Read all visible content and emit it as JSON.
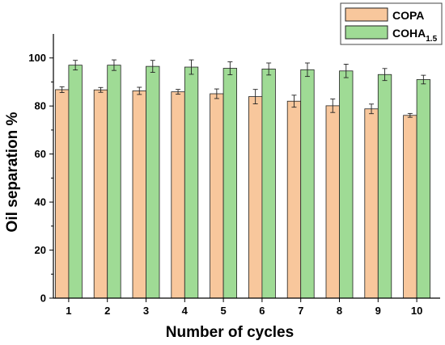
{
  "colors": {
    "copa": "#f8c79c",
    "coha": "#9fdb95",
    "stroke": "#222222"
  },
  "chart_data": {
    "type": "bar",
    "title": "",
    "xlabel": "Number of cycles",
    "ylabel": "Oil separation %",
    "ylim": [
      0,
      110
    ],
    "yticks": [
      "0",
      "20",
      "40",
      "60",
      "80",
      "100"
    ],
    "categories": [
      "1",
      "2",
      "3",
      "4",
      "5",
      "6",
      "7",
      "8",
      "9",
      "10"
    ],
    "legend_position": "top-right",
    "grid": false,
    "series": [
      {
        "name": "COPA",
        "name_main": "COPA",
        "name_sub": "",
        "values": [
          86.8,
          86.7,
          86.3,
          85.9,
          85.1,
          83.9,
          82.0,
          80.1,
          78.8,
          76.1
        ],
        "errors": [
          1.2,
          1.0,
          1.5,
          1.0,
          2.0,
          3.0,
          2.5,
          2.8,
          2.0,
          0.8
        ]
      },
      {
        "name": "COHA1.5",
        "name_main": "COHA",
        "name_sub": "1.5",
        "values": [
          97.0,
          97.0,
          96.5,
          96.2,
          95.7,
          95.4,
          95.1,
          94.6,
          93.1,
          91.0
        ],
        "errors": [
          2.0,
          2.2,
          2.5,
          3.0,
          2.7,
          2.5,
          2.8,
          2.8,
          2.5,
          1.8
        ]
      }
    ]
  }
}
